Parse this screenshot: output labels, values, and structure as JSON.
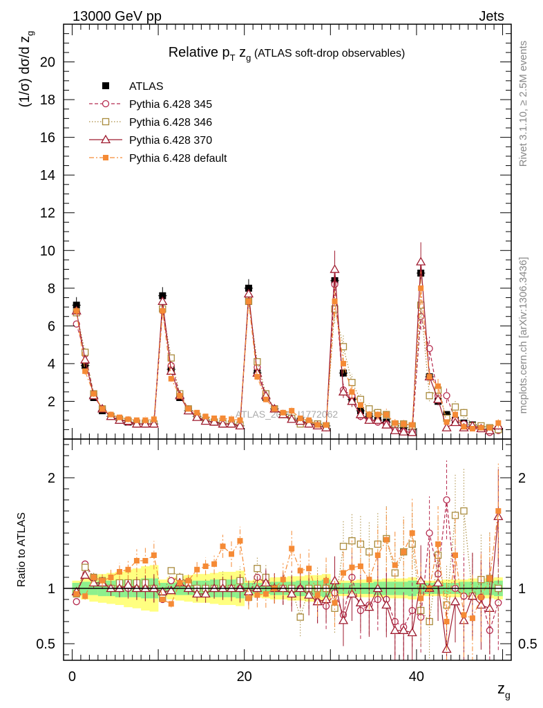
{
  "header": {
    "left": "13000 GeV pp",
    "right": "Jets"
  },
  "side_labels": {
    "rivet": "Rivet 3.1.10, ≥ 2.5M events",
    "mcplots": "mcplots.cern.ch [arXiv:1306.3436]"
  },
  "watermark": "ATLAS_2019_I1772062",
  "colors": {
    "ATLAS": "#000000",
    "Pythia 6.428 345": "#b5294d",
    "Pythia 6.428 346": "#a88a3c",
    "Pythia 6.428 370": "#9e1a2e",
    "Pythia 6.428 default": "#f58a35",
    "band_inner": "#8df08d",
    "band_outer": "#ffff80"
  },
  "chart_data": {
    "type": "scatter",
    "title": "Relative p_T z_g (ATLAS soft-drop observables)",
    "title_parts": {
      "main": "Relative p",
      "sub1": "T",
      "mid": " z",
      "sub2": "g",
      "rest": " (ATLAS soft-drop observables)"
    },
    "xlabel": "z_g",
    "xlabel_parts": {
      "main": "z",
      "sub": "g"
    },
    "ylabel": "(1/σ) dσ/d z_g",
    "ylabel_parts": {
      "main": "(1/σ) dσ/d z",
      "sub": "g"
    },
    "ratio_ylabel": "Ratio to ATLAS",
    "xlim": [
      -1,
      51
    ],
    "ylim": [
      0,
      22
    ],
    "ratio_ylim": [
      0.35,
      2.35
    ],
    "x_ticks": [
      "0",
      "20",
      "40"
    ],
    "y_ticks": [
      "2",
      "4",
      "6",
      "8",
      "10",
      "12",
      "14",
      "16",
      "18",
      "20"
    ],
    "ratio_ticks": [
      "0.5",
      "1",
      "2"
    ],
    "legend": [
      "ATLAS",
      "Pythia 6.428 345",
      "Pythia 6.428 346",
      "Pythia 6.428 370",
      "Pythia 6.428 default"
    ],
    "legend_placement": "top-left",
    "x": [
      0.5,
      1.5,
      2.5,
      3.5,
      4.5,
      5.5,
      6.5,
      7.5,
      8.5,
      9.5,
      10.5,
      11.5,
      12.5,
      13.5,
      14.5,
      15.5,
      16.5,
      17.5,
      18.5,
      19.5,
      20.5,
      21.5,
      22.5,
      23.5,
      24.5,
      25.5,
      26.5,
      27.5,
      28.5,
      29.5,
      30.5,
      31.5,
      32.5,
      33.5,
      34.5,
      35.5,
      36.5,
      37.5,
      38.5,
      39.5,
      40.5,
      41.5,
      42.5,
      43.5,
      44.5,
      45.5,
      46.5,
      47.5,
      48.5,
      49.5
    ],
    "series": [
      {
        "name": "ATLAS",
        "values": [
          7.1,
          3.9,
          2.2,
          1.5,
          1.2,
          1.0,
          0.9,
          0.8,
          0.8,
          0.8,
          7.6,
          3.7,
          2.2,
          1.5,
          1.2,
          1.0,
          0.9,
          0.8,
          0.8,
          0.7,
          8.0,
          3.5,
          2.2,
          1.6,
          1.3,
          1.1,
          0.95,
          0.85,
          0.8,
          0.7,
          8.4,
          3.5,
          2.1,
          1.5,
          1.2,
          1.0,
          0.9,
          0.7,
          0.6,
          0.5,
          8.8,
          3.3,
          2.0,
          1.3,
          1.0,
          0.85,
          0.75,
          0.65,
          0.55,
          0.5
        ],
        "band_inner": [
          0.05,
          0.06,
          0.06,
          0.07,
          0.07,
          0.08,
          0.08,
          0.08,
          0.09,
          0.09,
          0.05,
          0.05,
          0.06,
          0.06,
          0.07,
          0.07,
          0.08,
          0.08,
          0.08,
          0.09,
          0.05,
          0.05,
          0.05,
          0.06,
          0.06,
          0.06,
          0.07,
          0.07,
          0.07,
          0.08,
          0.05,
          0.05,
          0.05,
          0.05,
          0.05,
          0.06,
          0.06,
          0.06,
          0.06,
          0.07,
          0.05,
          0.05,
          0.05,
          0.05,
          0.05,
          0.06,
          0.06,
          0.06,
          0.06,
          0.07
        ],
        "band_outer": [
          0.07,
          0.1,
          0.12,
          0.13,
          0.14,
          0.15,
          0.17,
          0.18,
          0.2,
          0.21,
          0.08,
          0.1,
          0.11,
          0.12,
          0.13,
          0.13,
          0.14,
          0.15,
          0.15,
          0.16,
          0.07,
          0.08,
          0.09,
          0.1,
          0.1,
          0.11,
          0.11,
          0.12,
          0.12,
          0.13,
          0.07,
          0.07,
          0.07,
          0.08,
          0.08,
          0.08,
          0.09,
          0.09,
          0.09,
          0.1,
          0.07,
          0.07,
          0.07,
          0.08,
          0.08,
          0.08,
          0.09,
          0.09,
          0.09,
          0.1
        ]
      },
      {
        "name": "Pythia 6.428 345",
        "values": [
          6.1,
          4.5,
          2.4,
          1.6,
          1.2,
          1.0,
          0.9,
          0.8,
          0.8,
          0.8,
          6.8,
          3.9,
          2.4,
          1.6,
          1.2,
          1.0,
          0.9,
          0.8,
          0.8,
          0.7,
          7.5,
          3.8,
          2.3,
          1.6,
          1.3,
          1.1,
          0.95,
          0.85,
          0.7,
          0.6,
          8.2,
          2.6,
          2.3,
          1.2,
          1.0,
          0.9,
          0.8,
          0.5,
          0.4,
          0.4,
          6.5,
          4.8,
          2.3,
          2.3,
          1.0,
          0.8,
          0.7,
          0.6,
          0.35,
          0.45
        ],
        "ratio": [
          0.88,
          1.22,
          1.1,
          1.07,
          1.0,
          1.0,
          1.0,
          1.0,
          1.0,
          1.0,
          0.9,
          1.07,
          1.1,
          1.05,
          1.0,
          1.0,
          1.0,
          1.0,
          1.0,
          1.0,
          0.94,
          1.1,
          1.05,
          1.0,
          1.0,
          1.0,
          1.0,
          1.0,
          0.88,
          0.84,
          0.96,
          0.76,
          1.1,
          0.8,
          0.85,
          0.9,
          0.9,
          0.7,
          0.65,
          0.8,
          0.74,
          1.5,
          1.13,
          1.8,
          1.0,
          0.93,
          0.93,
          0.92,
          0.62,
          0.87
        ]
      },
      {
        "name": "Pythia 6.428 346",
        "values": [
          6.7,
          4.6,
          2.4,
          1.6,
          1.2,
          1.05,
          0.95,
          0.85,
          0.85,
          0.8,
          6.9,
          4.3,
          2.4,
          1.6,
          1.2,
          1.0,
          0.9,
          0.85,
          0.8,
          0.75,
          7.3,
          4.1,
          2.4,
          1.6,
          1.3,
          1.1,
          0.8,
          0.85,
          0.8,
          0.7,
          6.9,
          4.9,
          3.0,
          2.1,
          1.6,
          1.4,
          1.3,
          0.8,
          0.8,
          0.7,
          7.1,
          2.3,
          2.6,
          1.1,
          1.7,
          1.4,
          0.7,
          0.7,
          0.6,
          0.5
        ],
        "ratio": [
          0.95,
          1.19,
          1.1,
          1.07,
          1.0,
          1.05,
          1.05,
          1.05,
          1.05,
          1.0,
          0.91,
          1.16,
          1.1,
          1.05,
          1.0,
          1.0,
          1.0,
          1.05,
          1.0,
          1.07,
          0.92,
          1.18,
          1.1,
          1.0,
          1.0,
          1.0,
          0.74,
          1.0,
          1.0,
          1.0,
          0.82,
          1.38,
          1.43,
          1.4,
          1.33,
          1.4,
          1.45,
          1.14,
          1.33,
          1.4,
          0.8,
          0.7,
          1.3,
          0.85,
          1.66,
          1.7,
          0.93,
          1.08,
          1.09,
          1.0
        ]
      },
      {
        "name": "Pythia 6.428 370",
        "values": [
          6.8,
          4.2,
          2.3,
          1.6,
          1.2,
          1.0,
          0.95,
          0.8,
          0.8,
          0.8,
          7.3,
          3.6,
          2.3,
          1.5,
          1.15,
          0.95,
          0.9,
          0.8,
          0.8,
          0.7,
          7.7,
          3.5,
          2.3,
          1.6,
          1.3,
          1.05,
          0.95,
          0.8,
          0.7,
          0.6,
          9.0,
          2.5,
          2.0,
          1.3,
          1.0,
          1.0,
          0.75,
          0.45,
          0.38,
          0.35,
          9.4,
          3.3,
          2.1,
          0.6,
          0.88,
          0.6,
          0.7,
          0.55,
          0.45,
          0.7
        ],
        "ratio": [
          0.97,
          1.12,
          1.05,
          1.05,
          1.0,
          1.0,
          1.03,
          1.0,
          1.0,
          1.0,
          0.97,
          0.98,
          1.05,
          1.0,
          0.95,
          0.95,
          1.0,
          1.0,
          1.0,
          1.0,
          0.97,
          1.0,
          1.05,
          1.0,
          1.0,
          0.95,
          1.0,
          0.94,
          0.88,
          0.9,
          1.07,
          0.71,
          0.95,
          0.87,
          0.83,
          1.0,
          0.85,
          0.62,
          0.62,
          0.6,
          1.07,
          1.0,
          1.05,
          0.45,
          0.88,
          0.71,
          0.93,
          0.85,
          0.82,
          1.65
        ]
      },
      {
        "name": "Pythia 6.428 default",
        "values": [
          6.8,
          3.6,
          2.4,
          1.6,
          1.3,
          1.15,
          1.05,
          1.0,
          1.0,
          1.05,
          6.8,
          3.2,
          2.3,
          1.6,
          1.4,
          1.2,
          1.1,
          1.1,
          1.05,
          1.0,
          7.3,
          3.3,
          2.1,
          1.6,
          1.4,
          1.5,
          1.1,
          1.0,
          0.75,
          0.75,
          7.3,
          4.0,
          2.5,
          1.8,
          1.3,
          1.3,
          1.3,
          0.85,
          0.8,
          0.75,
          8.0,
          3.3,
          2.8,
          0.9,
          1.3,
          0.65,
          0.55,
          0.6,
          0.6,
          0.85
        ],
        "ratio": [
          0.95,
          0.93,
          1.1,
          1.07,
          1.1,
          1.15,
          1.17,
          1.25,
          1.25,
          1.3,
          0.9,
          0.86,
          1.05,
          1.07,
          1.17,
          1.2,
          1.22,
          1.38,
          1.31,
          1.43,
          0.91,
          0.94,
          0.95,
          1.0,
          1.08,
          1.36,
          1.16,
          1.18,
          0.94,
          1.07,
          0.87,
          1.14,
          1.19,
          1.2,
          1.08,
          1.3,
          1.44,
          1.21,
          1.33,
          1.5,
          0.91,
          1.0,
          1.4,
          0.7,
          1.3,
          0.76,
          0.73,
          0.92,
          1.09,
          1.7
        ]
      }
    ]
  }
}
